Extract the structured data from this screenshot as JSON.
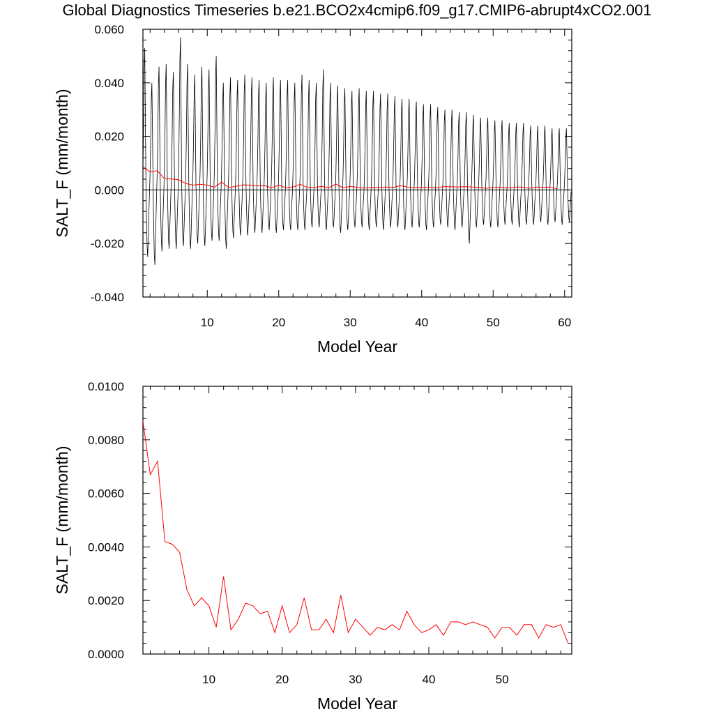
{
  "title": "Global Diagnostics Timeseries b.e21.BCO2x4cmip6.f09_g17.CMIP6-abrupt4xCO2.001",
  "colors": {
    "monthly": "#000000",
    "annual": "#ff0000",
    "zero_line": "#000000"
  },
  "chart_data": [
    {
      "type": "line",
      "xlabel": "Model Year",
      "ylabel": "SALT_F (mm/month)",
      "xlim": [
        1,
        61
      ],
      "ylim": [
        -0.04,
        0.06
      ],
      "xticks": [
        10,
        20,
        30,
        40,
        50,
        60
      ],
      "yticks": [
        -0.04,
        -0.02,
        0.0,
        0.02,
        0.04,
        0.06
      ],
      "ytick_labels": [
        "-0.040",
        "-0.020",
        "0.000",
        "0.020",
        "0.040",
        "0.060"
      ],
      "reference_line_y": 0.0,
      "series": [
        {
          "role": "monthly",
          "x_start": 1,
          "x_step": 0.0833333,
          "cycle_peaks": [
            0.053,
            0.04,
            0.046,
            0.047,
            0.044,
            0.057,
            0.047,
            0.043,
            0.046,
            0.045,
            0.05,
            0.04,
            0.042,
            0.041,
            0.043,
            0.042,
            0.041,
            0.04,
            0.042,
            0.041,
            0.041,
            0.04,
            0.043,
            0.041,
            0.04,
            0.045,
            0.04,
            0.039,
            0.038,
            0.037,
            0.038,
            0.037,
            0.037,
            0.036,
            0.036,
            0.035,
            0.034,
            0.034,
            0.033,
            0.032,
            0.032,
            0.031,
            0.03,
            0.03,
            0.029,
            0.029,
            0.028,
            0.027,
            0.027,
            0.026,
            0.026,
            0.025,
            0.025,
            0.025,
            0.024,
            0.024,
            0.024,
            0.023,
            0.023,
            0.023
          ],
          "cycle_troughs": [
            -0.025,
            -0.028,
            -0.023,
            -0.022,
            -0.022,
            -0.021,
            -0.022,
            -0.02,
            -0.021,
            -0.019,
            -0.019,
            -0.022,
            -0.018,
            -0.017,
            -0.017,
            -0.016,
            -0.016,
            -0.015,
            -0.016,
            -0.015,
            -0.015,
            -0.015,
            -0.015,
            -0.014,
            -0.014,
            -0.015,
            -0.014,
            -0.016,
            -0.015,
            -0.014,
            -0.014,
            -0.015,
            -0.014,
            -0.015,
            -0.014,
            -0.014,
            -0.015,
            -0.014,
            -0.014,
            -0.015,
            -0.014,
            -0.013,
            -0.014,
            -0.015,
            -0.014,
            -0.02,
            -0.014,
            -0.013,
            -0.014,
            -0.014,
            -0.013,
            -0.013,
            -0.014,
            -0.013,
            -0.013,
            -0.012,
            -0.013,
            -0.012,
            -0.013,
            -0.012
          ]
        },
        {
          "role": "annual",
          "x_start": 1,
          "x_step": 1,
          "values": [
            0.0087,
            0.0067,
            0.0072,
            0.0042,
            0.0041,
            0.0038,
            0.0024,
            0.0018,
            0.0021,
            0.0018,
            0.001,
            0.0029,
            0.0009,
            0.0013,
            0.0019,
            0.0018,
            0.0015,
            0.0016,
            0.0008,
            0.0018,
            0.0008,
            0.0011,
            0.0021,
            0.0009,
            0.0009,
            0.0013,
            0.0008,
            0.0022,
            0.0008,
            0.0013,
            0.001,
            0.0007,
            0.001,
            0.0009,
            0.0011,
            0.0009,
            0.0016,
            0.0011,
            0.0008,
            0.0009,
            0.0011,
            0.0007,
            0.0012,
            0.0012,
            0.0011,
            0.0012,
            0.0011,
            0.001,
            0.0006,
            0.001,
            0.001,
            0.0007,
            0.0011,
            0.0011,
            0.0006,
            0.0011,
            0.001,
            0.0011,
            0.0004
          ]
        }
      ]
    },
    {
      "type": "line",
      "xlabel": "Model Year",
      "ylabel": "SALT_F (mm/month)",
      "xlim": [
        1,
        59.5
      ],
      "ylim": [
        0.0,
        0.01
      ],
      "xticks": [
        10,
        20,
        30,
        40,
        50
      ],
      "yticks": [
        0.0,
        0.002,
        0.004,
        0.006,
        0.008,
        0.01
      ],
      "ytick_labels": [
        "0.0000",
        "0.0020",
        "0.0040",
        "0.0060",
        "0.0080",
        "0.0100"
      ],
      "series": [
        {
          "role": "annual",
          "x_start": 1,
          "x_step": 1,
          "values": [
            0.0087,
            0.0067,
            0.0072,
            0.0042,
            0.0041,
            0.0038,
            0.0024,
            0.0018,
            0.0021,
            0.0018,
            0.001,
            0.0029,
            0.0009,
            0.0013,
            0.0019,
            0.0018,
            0.0015,
            0.0016,
            0.0008,
            0.0018,
            0.0008,
            0.0011,
            0.0021,
            0.0009,
            0.0009,
            0.0013,
            0.0008,
            0.0022,
            0.0008,
            0.0013,
            0.001,
            0.0007,
            0.001,
            0.0009,
            0.0011,
            0.0009,
            0.0016,
            0.0011,
            0.0008,
            0.0009,
            0.0011,
            0.0007,
            0.0012,
            0.0012,
            0.0011,
            0.0012,
            0.0011,
            0.001,
            0.0006,
            0.001,
            0.001,
            0.0007,
            0.0011,
            0.0011,
            0.0006,
            0.0011,
            0.001,
            0.0011,
            0.0004
          ]
        }
      ]
    }
  ]
}
